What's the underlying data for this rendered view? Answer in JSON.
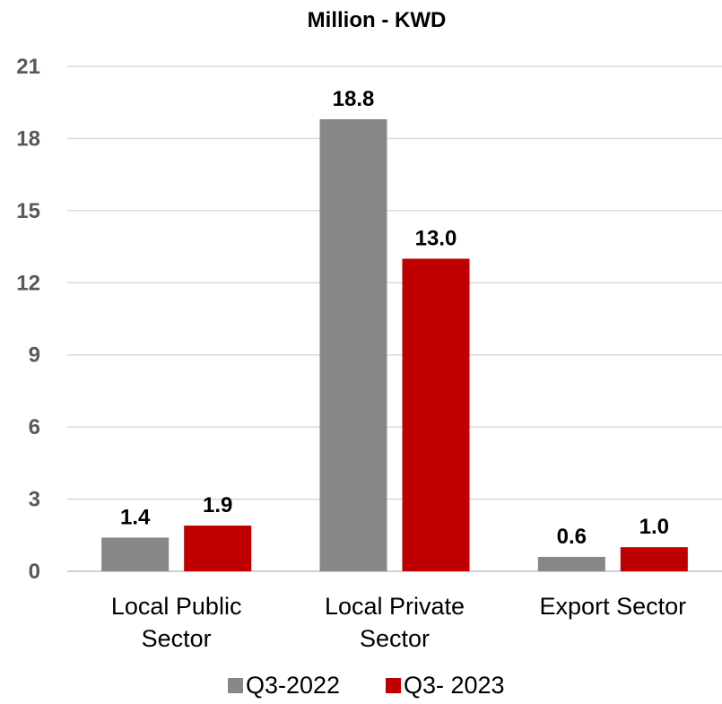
{
  "chart_data": {
    "type": "bar",
    "title": "Million - KWD",
    "xlabel": "",
    "ylabel": "",
    "ylim": [
      0,
      21
    ],
    "yticks": [
      "0",
      "3",
      "6",
      "9",
      "12",
      "15",
      "18",
      "21"
    ],
    "categories": [
      [
        "Local Public",
        "Sector"
      ],
      [
        "Local Private",
        "Sector"
      ],
      [
        "Export Sector"
      ]
    ],
    "series": [
      {
        "name": "Q3-2022",
        "color": "#878787",
        "values": [
          1.4,
          18.8,
          0.6
        ],
        "labels": [
          "1.4",
          "18.8",
          "0.6"
        ]
      },
      {
        "name": "Q3- 2023",
        "color": "#c00000",
        "values": [
          1.9,
          13.0,
          1.0
        ],
        "labels": [
          "1.9",
          "13.0",
          "1.0"
        ]
      }
    ],
    "grid": true,
    "legend_position": "bottom"
  }
}
